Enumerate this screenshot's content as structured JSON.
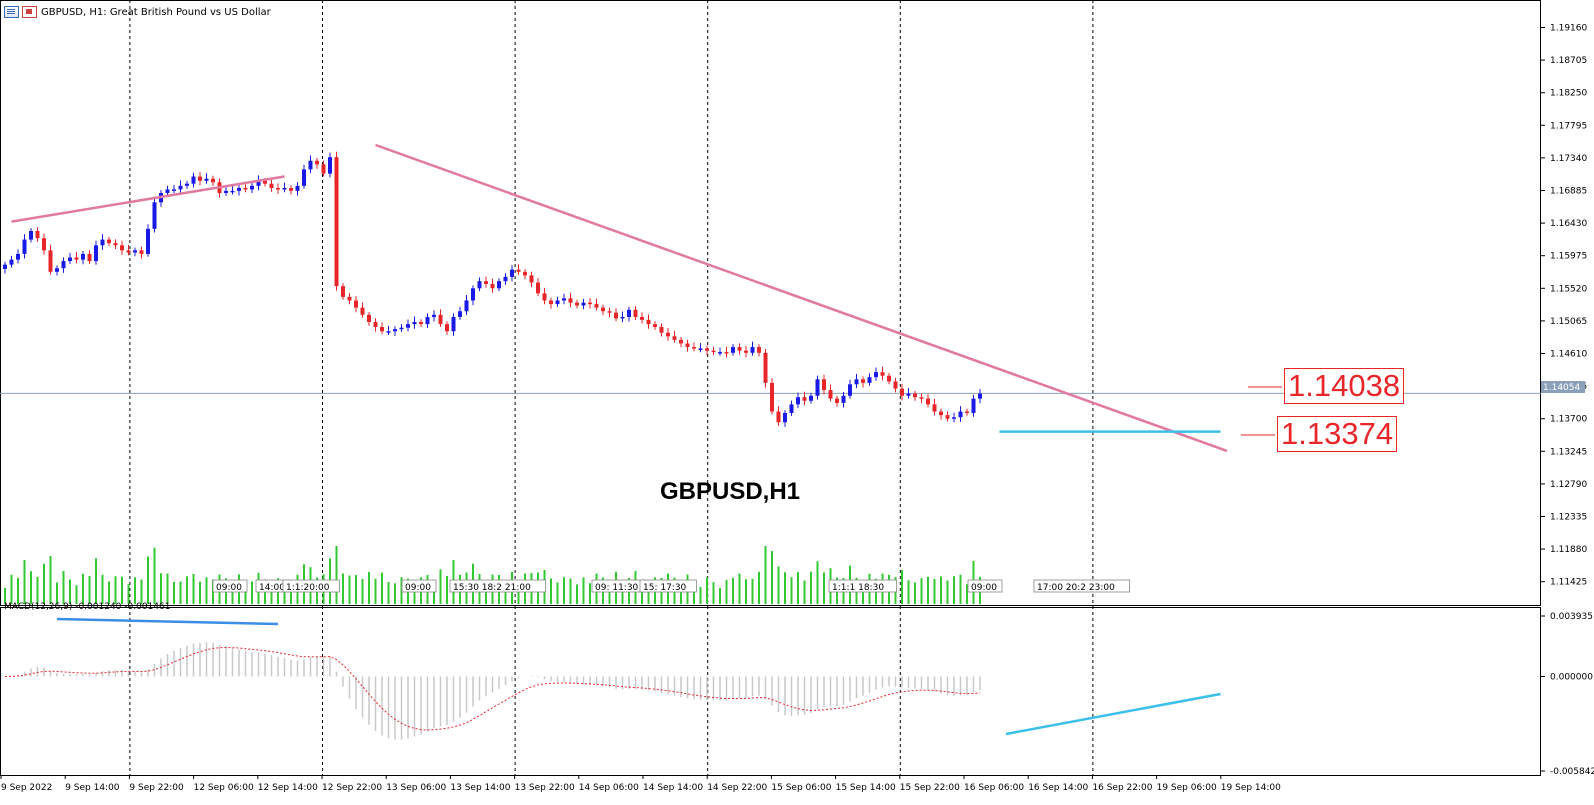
{
  "header": {
    "symbol": "GBPUSD, H1:",
    "description": "Great British Pound vs US Dollar"
  },
  "watermark": "GBPUSD,H1",
  "macd": {
    "label": "MACD(12,26,9) -0.001240 -0.001461",
    "scale": [
      "0.003935",
      "0.000000",
      "-0.005842"
    ]
  },
  "callouts": {
    "resistance_price": "1.14038",
    "support_price": "1.13374"
  },
  "colors": {
    "bull": "#1a1ae6",
    "bear": "#e8262a",
    "volume": "#32c832",
    "trendline": "#e07aa0",
    "support": "#3bc0ea",
    "macd_signal": "#e8262a",
    "macd_hist": "#c8c8c8",
    "divergence_blue": "#3b8ee8"
  },
  "chart_data": {
    "type": "candlestick",
    "symbol": "GBPUSD",
    "timeframe": "H1",
    "price_axis": [
      "1.19160",
      "1.18705",
      "1.18250",
      "1.17795",
      "1.17340",
      "1.16885",
      "1.16430",
      "1.15975",
      "1.15520",
      "1.15065",
      "1.14610",
      "1.14155",
      "1.13700",
      "1.13245",
      "1.12790",
      "1.12335",
      "1.11880",
      "1.11425"
    ],
    "current_price": "1.14054",
    "ylim": [
      1.1095,
      1.1964
    ],
    "time_axis": [
      "9 Sep 2022",
      "9 Sep 14:00",
      "9 Sep 22:00",
      "12 Sep 06:00",
      "12 Sep 14:00",
      "12 Sep 22:00",
      "13 Sep 06:00",
      "13 Sep 14:00",
      "13 Sep 22:00",
      "14 Sep 06:00",
      "14 Sep 14:00",
      "14 Sep 22:00",
      "15 Sep 06:00",
      "15 Sep 14:00",
      "15 Sep 22:00",
      "16 Sep 06:00",
      "16 Sep 14:00",
      "16 Sep 22:00",
      "19 Sep 06:00",
      "19 Sep 14:00"
    ],
    "close_path": [
      1.1585,
      1.1592,
      1.16,
      1.162,
      1.1632,
      1.1622,
      1.1605,
      1.1575,
      1.158,
      1.159,
      1.1595,
      1.1592,
      1.16,
      1.159,
      1.1612,
      1.162,
      1.1615,
      1.1612,
      1.1605,
      1.1602,
      1.1605,
      1.16,
      1.1635,
      1.1672,
      1.1685,
      1.169,
      1.169,
      1.1695,
      1.1698,
      1.1708,
      1.1702,
      1.1705,
      1.17,
      1.1685,
      1.1688,
      1.1688,
      1.1692,
      1.169,
      1.1695,
      1.1702,
      1.1698,
      1.1692,
      1.169,
      1.1692,
      1.1688,
      1.1695,
      1.1718,
      1.173,
      1.1725,
      1.1712,
      1.1735,
      1.1555,
      1.154,
      1.1535,
      1.1525,
      1.1515,
      1.1505,
      1.1498,
      1.1492,
      1.1492,
      1.1495,
      1.1497,
      1.1502,
      1.1505,
      1.1502,
      1.1512,
      1.1515,
      1.1502,
      1.1492,
      1.1512,
      1.152,
      1.1535,
      1.1552,
      1.1562,
      1.1558,
      1.1552,
      1.1562,
      1.1568,
      1.1578,
      1.1575,
      1.157,
      1.156,
      1.1545,
      1.1535,
      1.153,
      1.1535,
      1.1538,
      1.1532,
      1.1528,
      1.1532,
      1.153,
      1.1525,
      1.152,
      1.1518,
      1.151,
      1.1512,
      1.1522,
      1.1512,
      1.1508,
      1.1502,
      1.1498,
      1.149,
      1.1485,
      1.148,
      1.1475,
      1.147,
      1.1468,
      1.1468,
      1.1465,
      1.1463,
      1.1463,
      1.1462,
      1.147,
      1.1465,
      1.1462,
      1.147,
      1.1462,
      1.142,
      1.138,
      1.1365,
      1.1378,
      1.139,
      1.14,
      1.1395,
      1.1402,
      1.1425,
      1.141,
      1.1398,
      1.1392,
      1.1402,
      1.1418,
      1.1425,
      1.142,
      1.1428,
      1.1435,
      1.143,
      1.1422,
      1.1412,
      1.1402,
      1.1405,
      1.14,
      1.1398,
      1.139,
      1.138,
      1.1375,
      1.137,
      1.1372,
      1.138,
      1.1378,
      1.1398,
      1.1405
    ],
    "trendlines": [
      {
        "type": "resistance",
        "from": [
          1,
          1.1645
        ],
        "to": [
          43,
          1.1708
        ]
      },
      {
        "type": "resistance",
        "from": [
          57,
          1.1752
        ],
        "to": [
          188,
          1.1325
        ]
      },
      {
        "type": "support",
        "from": [
          153,
          1.1352
        ],
        "to": [
          187,
          1.1352
        ]
      }
    ],
    "annotations": [
      "1.14038",
      "1.13374"
    ],
    "volume_labels": [
      "09:00",
      "14:00",
      "1:1:20:00",
      "09:00",
      "15:30 18:2 21:00",
      "09: 11:30",
      "15: 17:30",
      "1:1:1 18:30",
      "09:00",
      "17:00 20:2 23:00"
    ],
    "macd_range": [
      -0.005842,
      0.003935
    ]
  }
}
